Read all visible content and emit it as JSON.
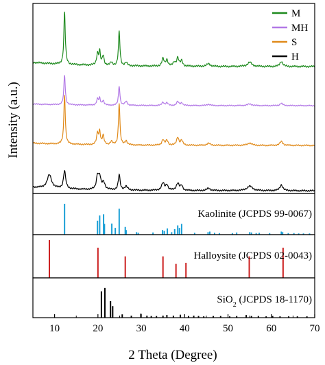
{
  "chart_data": {
    "type": "line",
    "xlabel": "2 Theta (Degree)",
    "ylabel": "Intensity (a.u.)",
    "xlim": [
      5,
      70
    ],
    "x_ticks": [
      10,
      20,
      30,
      40,
      50,
      60,
      70
    ],
    "grid": false,
    "legend_position": "top-right",
    "legend": [
      {
        "label": "M",
        "color": "#1e8a1e"
      },
      {
        "label": "MH",
        "color": "#b278e6"
      },
      {
        "label": "S",
        "color": "#e08a1a"
      },
      {
        "label": "H",
        "color": "#000000"
      }
    ],
    "series": [
      {
        "name": "M",
        "color": "#1e8a1e",
        "baseline": 0.08,
        "peaks": [
          {
            "x": 12.3,
            "h": 1.0,
            "w": 0.2
          },
          {
            "x": 19.9,
            "h": 0.22,
            "w": 0.25
          },
          {
            "x": 20.4,
            "h": 0.25,
            "w": 0.2
          },
          {
            "x": 21.2,
            "h": 0.18,
            "w": 0.25
          },
          {
            "x": 23.1,
            "h": 0.06,
            "w": 0.3
          },
          {
            "x": 24.9,
            "h": 0.66,
            "w": 0.2
          },
          {
            "x": 26.5,
            "h": 0.06,
            "w": 0.3
          },
          {
            "x": 35.0,
            "h": 0.14,
            "w": 0.3
          },
          {
            "x": 35.9,
            "h": 0.12,
            "w": 0.3
          },
          {
            "x": 37.6,
            "h": 0.07,
            "w": 0.3
          },
          {
            "x": 38.4,
            "h": 0.16,
            "w": 0.3
          },
          {
            "x": 39.3,
            "h": 0.1,
            "w": 0.3
          },
          {
            "x": 45.5,
            "h": 0.05,
            "w": 0.5
          },
          {
            "x": 55.0,
            "h": 0.08,
            "w": 0.6
          },
          {
            "x": 62.3,
            "h": 0.1,
            "w": 0.4
          }
        ]
      },
      {
        "name": "MH",
        "color": "#b278e6",
        "baseline": 0.05,
        "peaks": [
          {
            "x": 12.3,
            "h": 0.92,
            "w": 0.2
          },
          {
            "x": 19.9,
            "h": 0.18,
            "w": 0.25
          },
          {
            "x": 20.4,
            "h": 0.2,
            "w": 0.2
          },
          {
            "x": 21.2,
            "h": 0.14,
            "w": 0.25
          },
          {
            "x": 24.9,
            "h": 0.6,
            "w": 0.2
          },
          {
            "x": 26.5,
            "h": 0.12,
            "w": 0.3
          },
          {
            "x": 35.0,
            "h": 0.1,
            "w": 0.3
          },
          {
            "x": 35.9,
            "h": 0.08,
            "w": 0.3
          },
          {
            "x": 38.4,
            "h": 0.12,
            "w": 0.3
          },
          {
            "x": 39.3,
            "h": 0.08,
            "w": 0.3
          },
          {
            "x": 45.5,
            "h": 0.04,
            "w": 0.5
          },
          {
            "x": 55.0,
            "h": 0.05,
            "w": 0.6
          },
          {
            "x": 62.3,
            "h": 0.07,
            "w": 0.4
          }
        ]
      },
      {
        "name": "S",
        "color": "#e08a1a",
        "baseline": 0.06,
        "peaks": [
          {
            "x": 12.3,
            "h": 1.25,
            "w": 0.2
          },
          {
            "x": 19.9,
            "h": 0.28,
            "w": 0.25
          },
          {
            "x": 20.4,
            "h": 0.32,
            "w": 0.2
          },
          {
            "x": 21.2,
            "h": 0.22,
            "w": 0.25
          },
          {
            "x": 23.1,
            "h": 0.08,
            "w": 0.3
          },
          {
            "x": 24.9,
            "h": 1.05,
            "w": 0.2
          },
          {
            "x": 26.5,
            "h": 0.1,
            "w": 0.3
          },
          {
            "x": 35.0,
            "h": 0.14,
            "w": 0.3
          },
          {
            "x": 35.9,
            "h": 0.12,
            "w": 0.3
          },
          {
            "x": 38.4,
            "h": 0.2,
            "w": 0.3
          },
          {
            "x": 39.3,
            "h": 0.12,
            "w": 0.3
          },
          {
            "x": 45.5,
            "h": 0.05,
            "w": 0.5
          },
          {
            "x": 55.0,
            "h": 0.06,
            "w": 0.6
          },
          {
            "x": 62.3,
            "h": 0.1,
            "w": 0.4
          }
        ]
      },
      {
        "name": "H",
        "color": "#000000",
        "baseline": 0.08,
        "peaks": [
          {
            "x": 8.8,
            "h": 0.3,
            "w": 0.6
          },
          {
            "x": 12.3,
            "h": 0.4,
            "w": 0.3
          },
          {
            "x": 19.9,
            "h": 0.3,
            "w": 0.3
          },
          {
            "x": 20.4,
            "h": 0.26,
            "w": 0.3
          },
          {
            "x": 21.3,
            "h": 0.16,
            "w": 0.4
          },
          {
            "x": 24.9,
            "h": 0.34,
            "w": 0.25
          },
          {
            "x": 26.5,
            "h": 0.08,
            "w": 0.4
          },
          {
            "x": 35.0,
            "h": 0.16,
            "w": 0.4
          },
          {
            "x": 35.9,
            "h": 0.12,
            "w": 0.3
          },
          {
            "x": 38.4,
            "h": 0.16,
            "w": 0.4
          },
          {
            "x": 39.3,
            "h": 0.1,
            "w": 0.3
          },
          {
            "x": 45.5,
            "h": 0.05,
            "w": 0.5
          },
          {
            "x": 55.0,
            "h": 0.1,
            "w": 0.8
          },
          {
            "x": 62.3,
            "h": 0.13,
            "w": 0.4
          }
        ]
      }
    ],
    "references": [
      {
        "label_parts": [
          "Kaolinite (JCPDS 99-0067)"
        ],
        "color": "#1a9fd6",
        "peaks": [
          {
            "x": 12.3,
            "h": 1.0
          },
          {
            "x": 19.9,
            "h": 0.45
          },
          {
            "x": 20.4,
            "h": 0.62
          },
          {
            "x": 21.3,
            "h": 0.66
          },
          {
            "x": 21.5,
            "h": 0.35
          },
          {
            "x": 23.2,
            "h": 0.36
          },
          {
            "x": 24.0,
            "h": 0.22
          },
          {
            "x": 24.9,
            "h": 0.84
          },
          {
            "x": 26.3,
            "h": 0.25
          },
          {
            "x": 26.5,
            "h": 0.15
          },
          {
            "x": 28.9,
            "h": 0.08
          },
          {
            "x": 29.3,
            "h": 0.06
          },
          {
            "x": 32.7,
            "h": 0.07
          },
          {
            "x": 34.9,
            "h": 0.15
          },
          {
            "x": 35.3,
            "h": 0.12
          },
          {
            "x": 36.0,
            "h": 0.2
          },
          {
            "x": 37.0,
            "h": 0.08
          },
          {
            "x": 37.7,
            "h": 0.18
          },
          {
            "x": 38.4,
            "h": 0.3
          },
          {
            "x": 38.8,
            "h": 0.22
          },
          {
            "x": 39.3,
            "h": 0.35
          },
          {
            "x": 42.3,
            "h": 0.06
          },
          {
            "x": 45.4,
            "h": 0.08
          },
          {
            "x": 45.8,
            "h": 0.1
          },
          {
            "x": 46.9,
            "h": 0.06
          },
          {
            "x": 48.0,
            "h": 0.05
          },
          {
            "x": 51.0,
            "h": 0.05
          },
          {
            "x": 52.0,
            "h": 0.07
          },
          {
            "x": 55.0,
            "h": 0.08
          },
          {
            "x": 55.4,
            "h": 0.07
          },
          {
            "x": 56.5,
            "h": 0.05
          },
          {
            "x": 57.2,
            "h": 0.06
          },
          {
            "x": 59.6,
            "h": 0.05
          },
          {
            "x": 62.3,
            "h": 0.1
          },
          {
            "x": 62.6,
            "h": 0.08
          },
          {
            "x": 63.9,
            "h": 0.05
          },
          {
            "x": 65.2,
            "h": 0.05
          },
          {
            "x": 66.3,
            "h": 0.04
          },
          {
            "x": 67.4,
            "h": 0.04
          },
          {
            "x": 68.8,
            "h": 0.04
          }
        ]
      },
      {
        "label_parts": [
          "Halloysite (JCPDS 02-0043)"
        ],
        "color": "#cc1f1f",
        "peaks": [
          {
            "x": 8.8,
            "h": 1.0
          },
          {
            "x": 20.0,
            "h": 0.8
          },
          {
            "x": 26.3,
            "h": 0.57
          },
          {
            "x": 35.0,
            "h": 0.57
          },
          {
            "x": 38.0,
            "h": 0.37
          },
          {
            "x": 40.3,
            "h": 0.4
          },
          {
            "x": 54.9,
            "h": 0.57
          },
          {
            "x": 62.7,
            "h": 0.8
          }
        ]
      },
      {
        "label_parts": [
          "SiO",
          "2",
          " (JCPDS 18-1170)"
        ],
        "color": "#000000",
        "peaks": [
          {
            "x": 20.8,
            "h": 0.8
          },
          {
            "x": 21.6,
            "h": 0.9
          },
          {
            "x": 22.9,
            "h": 0.5
          },
          {
            "x": 23.4,
            "h": 0.35
          },
          {
            "x": 25.6,
            "h": 0.1
          },
          {
            "x": 27.7,
            "h": 0.06
          },
          {
            "x": 29.9,
            "h": 0.12
          },
          {
            "x": 31.3,
            "h": 0.06
          },
          {
            "x": 32.3,
            "h": 0.05
          },
          {
            "x": 33.5,
            "h": 0.05
          },
          {
            "x": 35.0,
            "h": 0.06
          },
          {
            "x": 35.9,
            "h": 0.08
          },
          {
            "x": 37.4,
            "h": 0.06
          },
          {
            "x": 39.0,
            "h": 0.09
          },
          {
            "x": 40.9,
            "h": 0.05
          },
          {
            "x": 42.1,
            "h": 0.06
          },
          {
            "x": 43.2,
            "h": 0.05
          },
          {
            "x": 44.4,
            "h": 0.04
          },
          {
            "x": 46.6,
            "h": 0.05
          },
          {
            "x": 48.3,
            "h": 0.05
          },
          {
            "x": 50.4,
            "h": 0.04
          },
          {
            "x": 52.0,
            "h": 0.05
          },
          {
            "x": 54.2,
            "h": 0.08
          },
          {
            "x": 55.4,
            "h": 0.05
          },
          {
            "x": 57.0,
            "h": 0.05
          },
          {
            "x": 58.8,
            "h": 0.04
          },
          {
            "x": 60.3,
            "h": 0.05
          },
          {
            "x": 62.0,
            "h": 0.04
          },
          {
            "x": 64.0,
            "h": 0.04
          },
          {
            "x": 66.0,
            "h": 0.04
          },
          {
            "x": 68.2,
            "h": 0.04
          }
        ]
      }
    ]
  }
}
